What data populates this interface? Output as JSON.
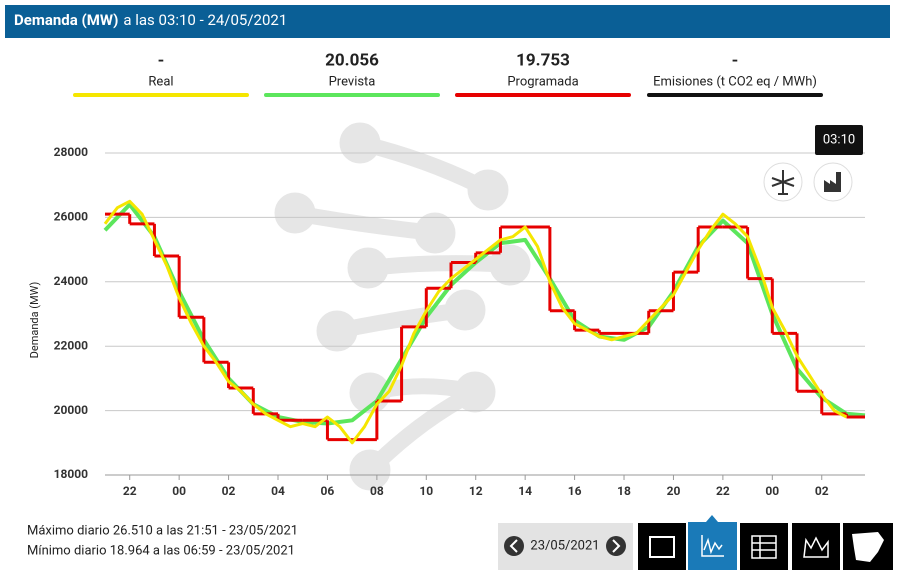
{
  "header": {
    "title": "Demanda (MW)",
    "subtitle": "a las 03:10 - 24/05/2021"
  },
  "readings": [
    "-",
    "20.056",
    "19.753",
    "-"
  ],
  "emissions": {
    "label": "Emisiones (t CO2 eq / MWh)",
    "color": "#111111"
  },
  "tooltip": "03:10",
  "footer": {
    "max": "Máximo diario 26.510 a las 21:51 - 23/05/2021",
    "min": "Mínimo diario 18.964 a las 06:59 - 23/05/2021"
  },
  "nav": {
    "date": "23/05/2021"
  },
  "chart_data": {
    "type": "line",
    "ylabel": "Demanda (MW)",
    "xlim": [
      -3,
      27.75
    ],
    "ylim": [
      18000,
      29000
    ],
    "xticks": [
      {
        "value": -2,
        "label": "22"
      },
      {
        "value": 0,
        "label": "00"
      },
      {
        "value": 2,
        "label": "02"
      },
      {
        "value": 4,
        "label": "04"
      },
      {
        "value": 6,
        "label": "06"
      },
      {
        "value": 8,
        "label": "08"
      },
      10,
      12,
      14,
      16,
      18,
      20,
      22,
      {
        "value": 24,
        "label": "00"
      },
      {
        "value": 26,
        "label": "02"
      }
    ],
    "yticks": [
      18000,
      20000,
      22000,
      24000,
      26000,
      28000
    ],
    "grid": true,
    "series": [
      {
        "name": "Real",
        "color": "#f5e600",
        "x": [
          -3,
          -2.5,
          -2,
          -1.5,
          -1,
          -0.5,
          0,
          0.5,
          1,
          1.5,
          2,
          2.5,
          3,
          3.5,
          4,
          4.5,
          5,
          5.5,
          6,
          6.5,
          7,
          7.5,
          8,
          8.5,
          9,
          9.5,
          10,
          10.5,
          11,
          11.5,
          12,
          12.5,
          13,
          13.5,
          14,
          14.5,
          15,
          15.5,
          16,
          16.5,
          17,
          17.5,
          18,
          18.5,
          19,
          19.5,
          20,
          20.5,
          21,
          21.5,
          22,
          22.5,
          23,
          23.5,
          24,
          24.5,
          25,
          25.5,
          26,
          26.5,
          27
        ],
        "values": [
          25800,
          26300,
          26500,
          26100,
          25300,
          24500,
          23500,
          22700,
          22000,
          21500,
          20900,
          20600,
          20200,
          19900,
          19700,
          19500,
          19600,
          19500,
          19800,
          19500,
          19000,
          19500,
          20200,
          20600,
          21400,
          22400,
          23100,
          23700,
          24100,
          24400,
          24700,
          25000,
          25300,
          25400,
          25700,
          25100,
          24000,
          23200,
          22700,
          22500,
          22300,
          22200,
          22300,
          22400,
          22800,
          23200,
          23600,
          24300,
          25000,
          25600,
          26100,
          25800,
          25400,
          24400,
          23200,
          22500,
          21700,
          21100,
          20500,
          20000,
          19800
        ]
      },
      {
        "name": "Prevista",
        "color": "#5ce65c",
        "x": [
          -3,
          -2,
          -1,
          0,
          1,
          2,
          3,
          4,
          5,
          6,
          7,
          8,
          9,
          10,
          11,
          12,
          13,
          14,
          15,
          16,
          17,
          18,
          19,
          20,
          21,
          22,
          23,
          24,
          25,
          26,
          27,
          27.75
        ],
        "values": [
          25600,
          26400,
          25400,
          23700,
          22200,
          21000,
          20200,
          19800,
          19650,
          19600,
          19700,
          20300,
          21600,
          22900,
          23900,
          24600,
          25200,
          25300,
          24100,
          22800,
          22300,
          22200,
          22600,
          23700,
          25100,
          25900,
          25200,
          23000,
          21300,
          20400,
          19900,
          19850
        ]
      },
      {
        "name": "Programada",
        "color": "#e60000",
        "step": true,
        "x": [
          -3,
          -2,
          -1,
          0,
          1,
          2,
          3,
          4,
          5,
          6,
          7,
          8,
          9,
          10,
          11,
          12,
          13,
          14,
          15,
          16,
          17,
          18,
          19,
          20,
          21,
          22,
          23,
          24,
          25,
          26,
          27
        ],
        "values": [
          26100,
          25800,
          24800,
          22900,
          21500,
          20700,
          19900,
          19700,
          19700,
          19100,
          19100,
          20300,
          22600,
          23800,
          24600,
          24900,
          25700,
          25700,
          23100,
          22500,
          22400,
          22400,
          23100,
          24300,
          25700,
          25700,
          24100,
          22400,
          20600,
          19900,
          19800
        ]
      }
    ]
  }
}
